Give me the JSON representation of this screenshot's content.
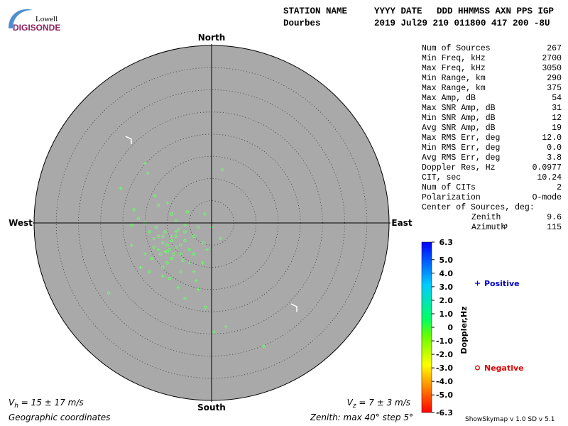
{
  "logo": {
    "top": "Lowell",
    "bottom": "DIGISONDE"
  },
  "header": {
    "labels": [
      "STATION NAME",
      "YYYY DATE",
      "DDD HHMMSS AXN PPS IGP"
    ],
    "values": [
      "Dourbes",
      "2019 Jul29 210 011800 417 200 -8U"
    ]
  },
  "stats": [
    [
      "Num of Sources",
      "267"
    ],
    [
      "Min Freq, kHz",
      "2700"
    ],
    [
      "Max Freq, kHz",
      "3050"
    ],
    [
      "Min Range, km",
      "290"
    ],
    [
      "Max Range, km",
      "375"
    ],
    [
      "Max Amp, dB",
      "54"
    ],
    [
      "Max SNR Amp, dB",
      "31"
    ],
    [
      "Min SNR Amp, dB",
      "12"
    ],
    [
      "Avg SNR Amp, dB",
      "19"
    ],
    [
      "Max RMS Err, deg",
      "12.0"
    ],
    [
      "Min RMS Err, deg",
      "0.0"
    ],
    [
      "Avg RMS Err, deg",
      "3.8"
    ],
    [
      "Doppler Res, Hz",
      "0.0977"
    ],
    [
      "CIT, sec",
      "10.24"
    ],
    [
      "Num of CITs",
      "2"
    ],
    [
      "Polarization",
      "O-mode"
    ]
  ],
  "center": {
    "title": "Center of Sources, deg:",
    "rows": [
      [
        "Zenith",
        "9.6"
      ],
      [
        "Azimuth",
        "115"
      ]
    ]
  },
  "chart_data": {
    "type": "polar-scatter",
    "directions": {
      "north": "North",
      "south": "South",
      "east": "East",
      "west": "West"
    },
    "rlim": [
      0,
      40
    ],
    "rticks": [
      5,
      10,
      15,
      20,
      25,
      30,
      35
    ],
    "series": [
      {
        "name": "Positive",
        "marker": "plus",
        "color": "#66ff66",
        "legend_color": "#0000cc",
        "x": [
          -9,
          -10.5,
          -7,
          -12,
          -8,
          -5,
          -13,
          -6,
          -4,
          -11,
          -15,
          -2,
          -1,
          0.6,
          3.2,
          -20.5,
          -14.4,
          -15,
          -12.8,
          -6,
          -3,
          -18,
          -1.5,
          0,
          -10,
          -16,
          -3.5,
          -7.5
        ],
        "y": [
          -3,
          -6.5,
          -7,
          -6,
          -2,
          -9,
          -3.5,
          -0.5,
          -11,
          -12,
          -7,
          -9,
          -6,
          -24.6,
          -23.4,
          7.8,
          11.2,
          13.4,
          6.1,
          -17,
          -15,
          -5,
          2,
          -1,
          4.5,
          -10,
          -13,
          -14.5
        ]
      },
      {
        "name": "Negative",
        "marker": "circle",
        "color": "#66ff66",
        "legend_color": "#dd0000",
        "x": [
          -9,
          -10,
          -8,
          -11,
          -9.5,
          -7,
          -12,
          -8.5,
          -10.5,
          -6,
          -13,
          -9,
          -11.5,
          -7.5,
          -14,
          -5,
          -10,
          -12.5,
          -8,
          -15,
          -4,
          -6.5,
          -11,
          -13.5,
          -9,
          -16.5,
          -3,
          -5.5,
          -17.5,
          -12,
          -2,
          -7,
          -14,
          -9.5,
          -23.2,
          11.8,
          2.4,
          -1.4,
          -4,
          -10,
          -8,
          -11,
          -6,
          2,
          -18
        ],
        "y": [
          -4,
          -5,
          -3,
          -4.5,
          -6,
          -5,
          -3,
          -7,
          -2,
          -4,
          -5.5,
          -8,
          -7,
          -1.5,
          -2,
          -6,
          -9,
          -1,
          0.5,
          0,
          -3,
          -8.5,
          -10,
          -8,
          2,
          1,
          -1,
          2.5,
          3,
          4,
          -4.5,
          -11,
          -11,
          -12.5,
          -15.8,
          -27.8,
          12,
          -19,
          -7,
          -6.5,
          -5.5,
          -3,
          -2,
          -3.5,
          -0.5
        ]
      }
    ]
  },
  "colorbar": {
    "label": "Doppler,Hz",
    "lim": [
      -6.3,
      6.3
    ],
    "ticks": [
      6.3,
      {
        "value": 5,
        "label": "5.0"
      },
      {
        "value": 4,
        "label": "4.0"
      },
      {
        "value": 3,
        "label": "3.0"
      },
      {
        "value": 2,
        "label": "2.0"
      },
      {
        "value": 1,
        "label": "1.0"
      },
      0,
      {
        "value": -1,
        "label": "-1.0"
      },
      {
        "value": -2,
        "label": "-2.0"
      },
      {
        "value": -3,
        "label": "-3.0"
      },
      {
        "value": -4,
        "label": "-4.0"
      },
      {
        "value": -5,
        "label": "-5.0"
      },
      -6.3
    ]
  },
  "footer": {
    "vh": {
      "symbol": "V",
      "sub": "h",
      "text": " = 15 ± 17 m/s"
    },
    "vz": {
      "symbol": "V",
      "sub": "z",
      "text": " = 7 ± 3 m/s"
    },
    "coords": "Geographic coordinates",
    "zenith": "Zenith: max 40°  step 5°",
    "version": "ShowSkymap v 1.0  SD v 5.1"
  }
}
